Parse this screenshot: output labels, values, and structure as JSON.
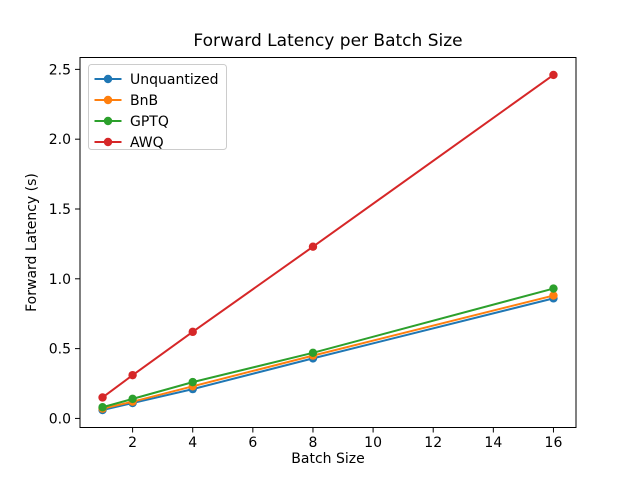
{
  "chart_data": {
    "type": "line",
    "title": "Forward Latency per Batch Size",
    "xlabel": "Batch Size",
    "ylabel": "Forward Latency (s)",
    "x": [
      1,
      2,
      4,
      8,
      16
    ],
    "series": [
      {
        "name": "Unquantized",
        "color": "#1f77b4",
        "values": [
          0.06,
          0.11,
          0.21,
          0.43,
          0.86
        ]
      },
      {
        "name": "BnB",
        "color": "#ff7f0e",
        "values": [
          0.07,
          0.12,
          0.23,
          0.45,
          0.88
        ]
      },
      {
        "name": "GPTQ",
        "color": "#2ca02c",
        "values": [
          0.08,
          0.14,
          0.26,
          0.47,
          0.93
        ]
      },
      {
        "name": "AWQ",
        "color": "#d62728",
        "values": [
          0.15,
          0.31,
          0.62,
          1.23,
          2.46
        ]
      }
    ],
    "xticks": [
      2,
      4,
      6,
      8,
      10,
      12,
      14,
      16
    ],
    "yticks": [
      0.0,
      0.5,
      1.0,
      1.5,
      2.0,
      2.5
    ],
    "xlim": [
      0.25,
      16.75
    ],
    "ylim": [
      -0.065,
      2.585
    ],
    "grid": false,
    "marker": "o",
    "background": "#ffffff",
    "spine_color": "#000000",
    "legend": {
      "position": "upper-left",
      "frame_border_color": "#cccccc",
      "entries": [
        "Unquantized",
        "BnB",
        "GPTQ",
        "AWQ"
      ]
    }
  }
}
